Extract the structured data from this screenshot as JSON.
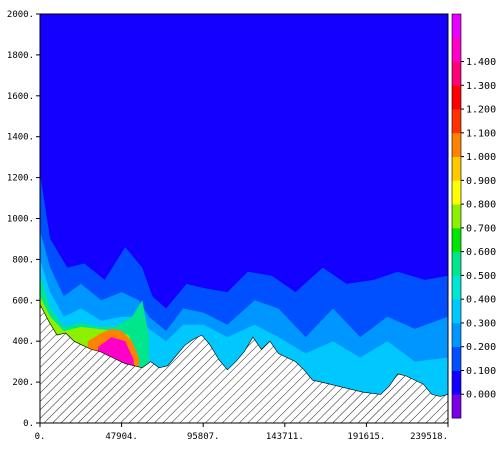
{
  "chart_data": {
    "type": "heatmap",
    "title": "",
    "xlabel": "",
    "ylabel": "",
    "xlim": [
      0,
      239518
    ],
    "ylim": [
      0,
      2000
    ],
    "x_ticks": [
      "0.",
      "47904.",
      "95807.",
      "143711.",
      "191615.",
      "239518."
    ],
    "y_ticks": [
      "0.",
      "200.",
      "400.",
      "600.",
      "800.",
      "1000.",
      "1200.",
      "1400.",
      "1600.",
      "1800.",
      "2000."
    ],
    "colorbar": {
      "labels": [
        "0.000",
        "0.100",
        "0.200",
        "0.300",
        "0.400",
        "0.500",
        "0.600",
        "0.700",
        "0.800",
        "0.900",
        "1.000",
        "1.100",
        "1.200",
        "1.300",
        "1.400"
      ],
      "colors": [
        "#7a00e6",
        "#1400ff",
        "#0050ff",
        "#0096ff",
        "#00c8ff",
        "#00e6d2",
        "#00e68c",
        "#00e600",
        "#8cf000",
        "#ffff00",
        "#ffc800",
        "#ff8200",
        "#ff3200",
        "#ff0000",
        "#ff0078",
        "#ff00c8",
        "#e600ff"
      ]
    },
    "terrain_profile": {
      "x": [
        0,
        5000,
        10000,
        15000,
        20000,
        25000,
        30000,
        35000,
        40000,
        45000,
        50000,
        55000,
        60000,
        65000,
        70000,
        75000,
        80000,
        85000,
        90000,
        95000,
        100000,
        105000,
        110000,
        115000,
        120000,
        125000,
        130000,
        135000,
        140000,
        145000,
        150000,
        155000,
        160000,
        165000,
        170000,
        175000,
        180000,
        185000,
        190000,
        195000,
        200000,
        205000,
        210000,
        215000,
        220000,
        225000,
        230000,
        235000,
        239518
      ],
      "y": [
        580,
        500,
        430,
        440,
        400,
        380,
        360,
        350,
        330,
        310,
        290,
        280,
        270,
        300,
        270,
        280,
        330,
        380,
        410,
        430,
        380,
        310,
        260,
        300,
        350,
        420,
        360,
        400,
        340,
        320,
        300,
        260,
        210,
        200,
        190,
        180,
        170,
        160,
        150,
        145,
        140,
        180,
        240,
        230,
        210,
        190,
        140,
        130,
        140
      ]
    },
    "field_levels": [
      {
        "level": 0.1,
        "x": [
          0,
          6000,
          16000,
          26000,
          38000,
          50000,
          60000,
          66000,
          74000,
          86000,
          96000,
          110000,
          122000,
          136000,
          150000,
          166000,
          180000,
          196000,
          210000,
          226000,
          239518
        ],
        "y": [
          1220,
          900,
          760,
          780,
          700,
          860,
          760,
          620,
          560,
          680,
          660,
          640,
          740,
          720,
          640,
          760,
          680,
          700,
          740,
          700,
          720
        ]
      },
      {
        "level": 0.2,
        "x": [
          0,
          6000,
          14000,
          24000,
          36000,
          48000,
          58000,
          64000,
          74000,
          84000,
          96000,
          110000,
          126000,
          140000,
          156000,
          172000,
          188000,
          204000,
          220000,
          239518
        ],
        "y": [
          940,
          760,
          620,
          680,
          600,
          640,
          600,
          520,
          450,
          560,
          540,
          480,
          600,
          560,
          420,
          560,
          420,
          520,
          460,
          520
        ]
      },
      {
        "level": 0.3,
        "x": [
          0,
          6000,
          14000,
          24000,
          36000,
          48000,
          58000,
          64000,
          74000,
          84000,
          96000,
          110000,
          126000,
          140000,
          156000,
          172000,
          188000,
          204000,
          220000,
          239518
        ],
        "y": [
          800,
          640,
          520,
          560,
          500,
          520,
          520,
          460,
          400,
          480,
          480,
          420,
          480,
          420,
          340,
          400,
          320,
          400,
          300,
          320
        ]
      },
      {
        "level": 0.5,
        "x": [
          0,
          6000,
          14000,
          24000,
          34000,
          44000,
          54000,
          60000,
          64000
        ],
        "y": [
          720,
          560,
          470,
          490,
          470,
          470,
          520,
          600,
          420
        ]
      },
      {
        "level": 0.7,
        "x": [
          0,
          6000,
          14000,
          24000,
          34000,
          44000,
          52000,
          58000
        ],
        "y": [
          620,
          520,
          450,
          470,
          460,
          450,
          430,
          320
        ]
      },
      {
        "level": 1.0,
        "x": [
          28000,
          36000,
          42000,
          48000,
          54000,
          58000
        ],
        "y": [
          400,
          440,
          460,
          450,
          400,
          320
        ]
      },
      {
        "level": 1.4,
        "x": [
          34000,
          42000,
          50000,
          55000
        ],
        "y": [
          370,
          420,
          400,
          310
        ]
      }
    ]
  }
}
